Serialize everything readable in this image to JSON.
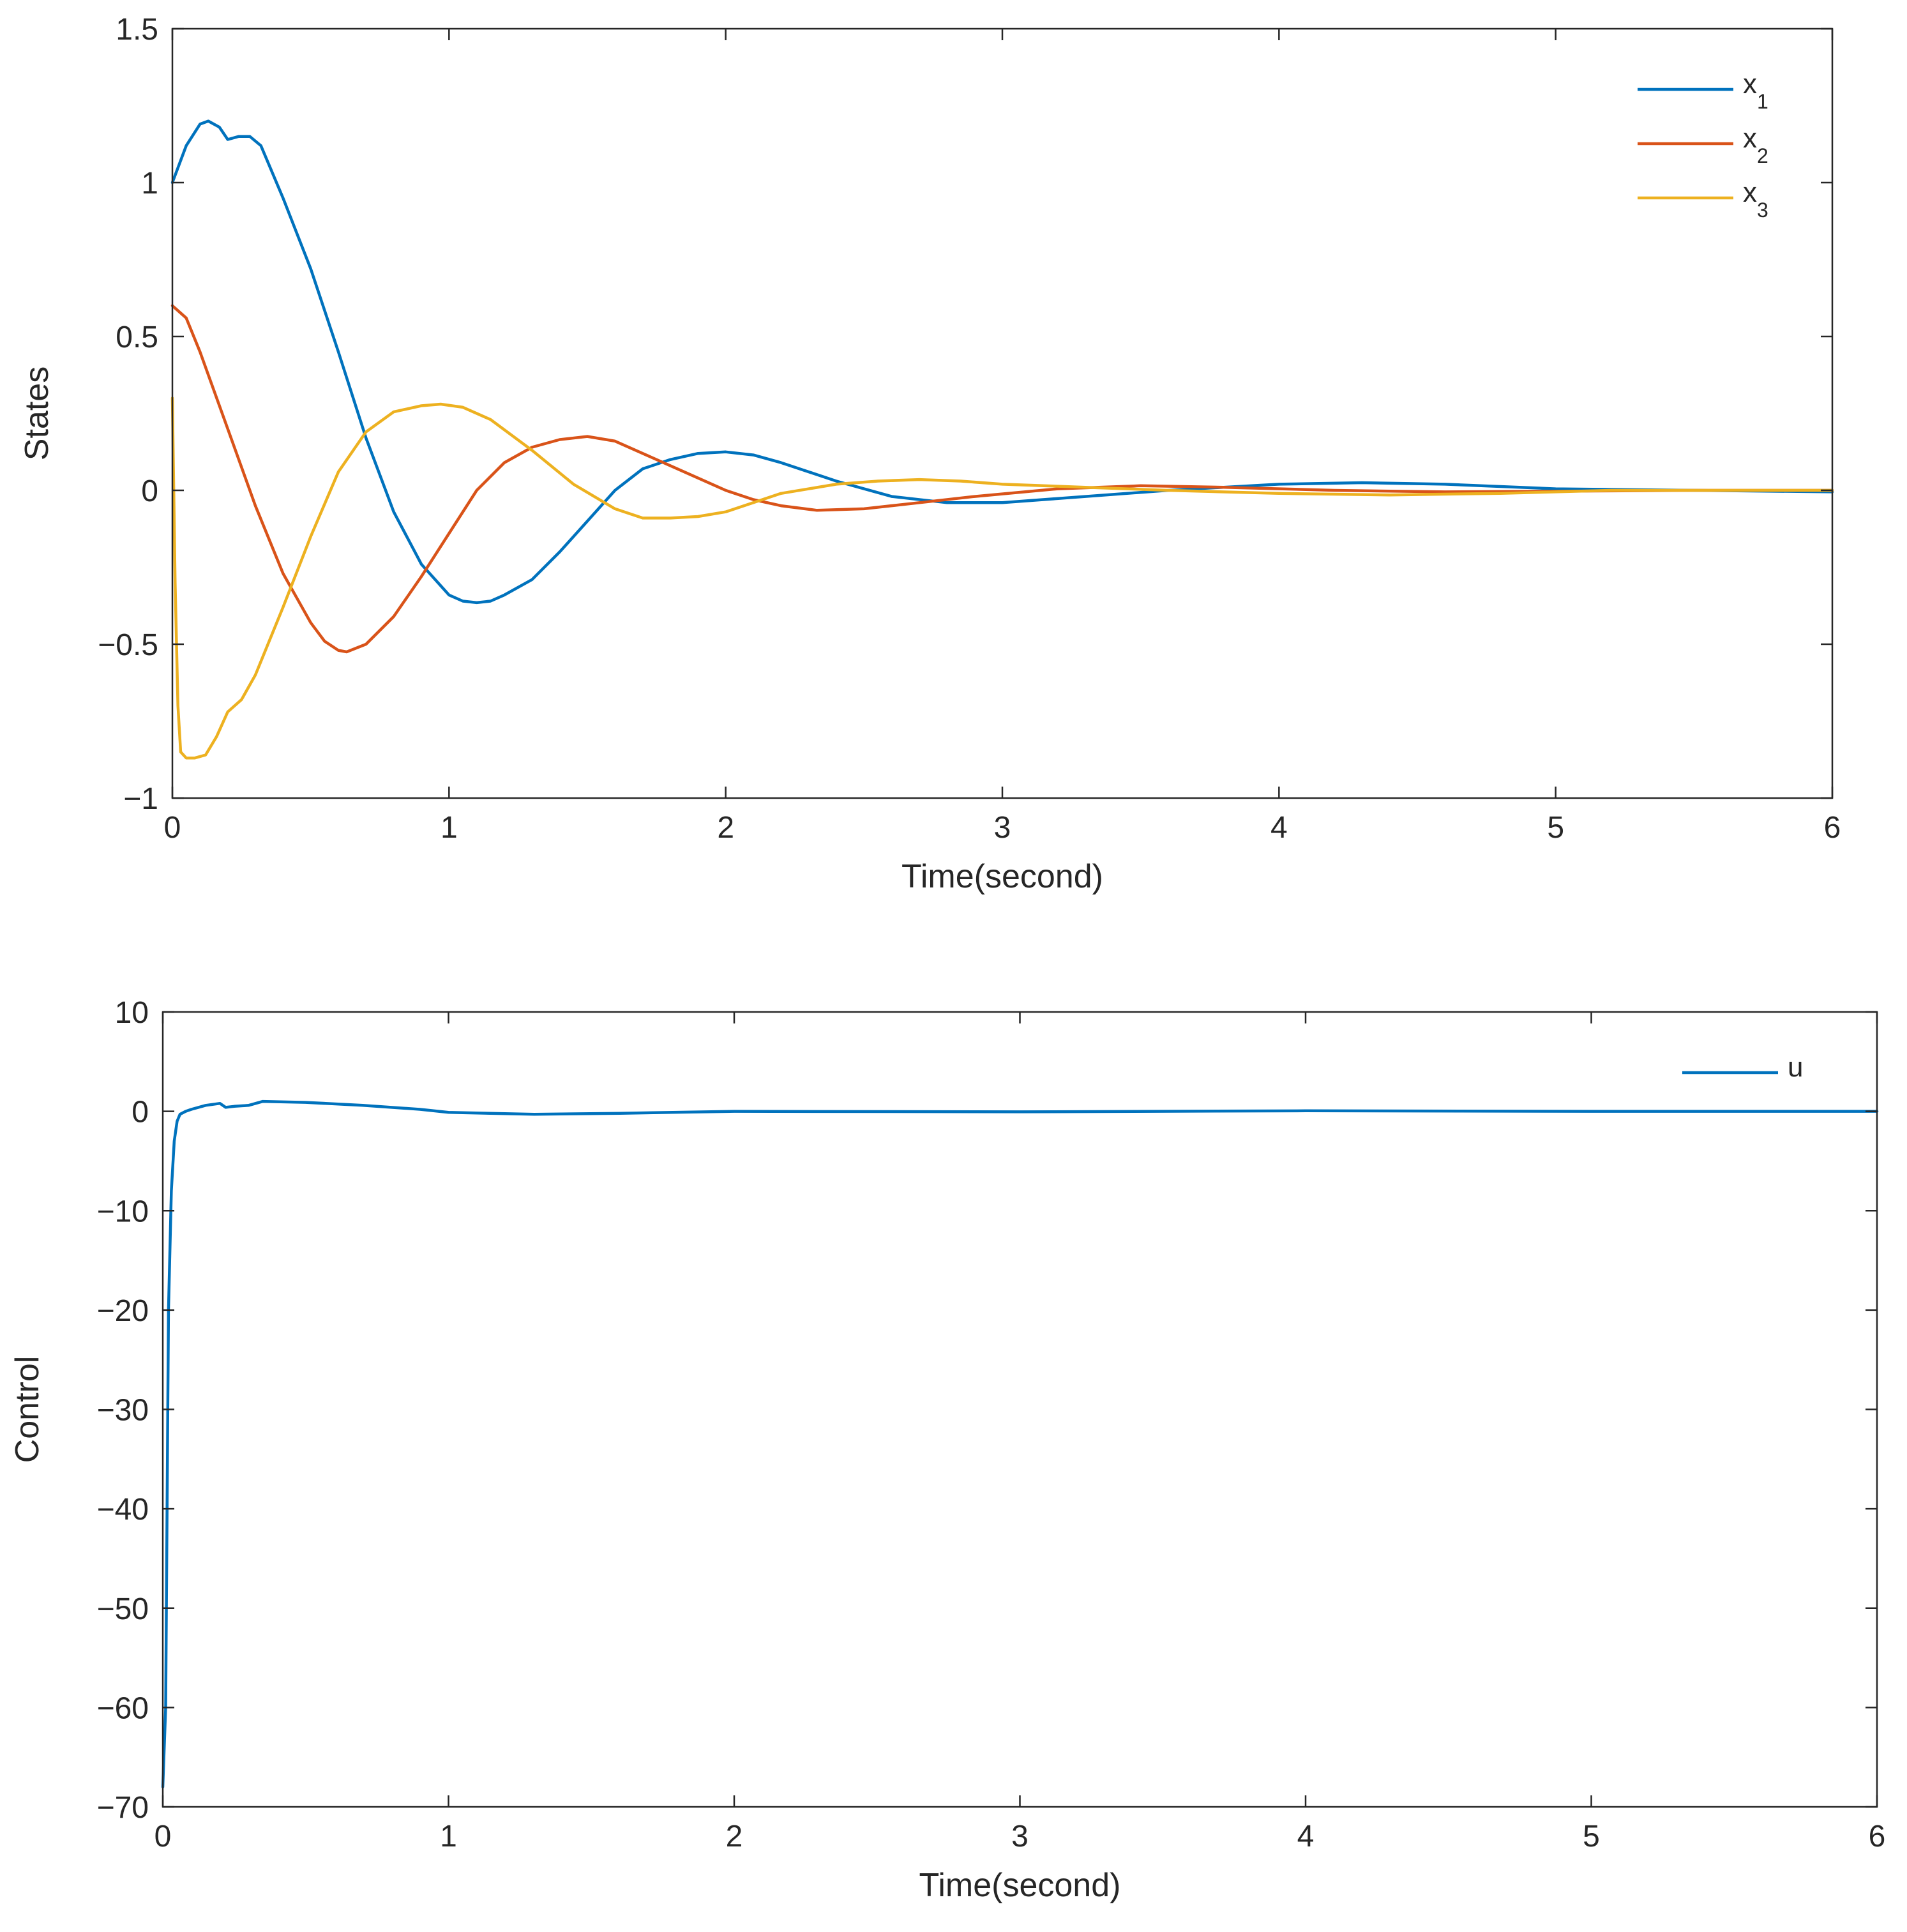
{
  "chart_data": [
    {
      "type": "line",
      "xlabel": "Time(second)",
      "ylabel": "States",
      "xlim": [
        0,
        6
      ],
      "ylim": [
        -1,
        1.5
      ],
      "xticks": [
        0,
        1,
        2,
        3,
        4,
        5,
        6
      ],
      "yticks": [
        -1,
        -0.5,
        0,
        0.5,
        1,
        1.5
      ],
      "xtick_labels": [
        "0",
        "1",
        "2",
        "3",
        "4",
        "5",
        "6"
      ],
      "ytick_labels": [
        "−1",
        "−0.5",
        "0",
        "0.5",
        "1",
        "1.5"
      ],
      "legend_position": "top-right",
      "series": [
        {
          "name": "x1",
          "label_main": "x",
          "label_sub": "1",
          "color": "#0072BD",
          "x": [
            0,
            0.05,
            0.1,
            0.13,
            0.17,
            0.2,
            0.24,
            0.28,
            0.32,
            0.4,
            0.5,
            0.6,
            0.7,
            0.8,
            0.9,
            1.0,
            1.05,
            1.1,
            1.15,
            1.2,
            1.3,
            1.4,
            1.5,
            1.6,
            1.7,
            1.8,
            1.9,
            2.0,
            2.1,
            2.2,
            2.4,
            2.6,
            2.8,
            3.0,
            3.3,
            3.6,
            4.0,
            4.3,
            4.6,
            5.0,
            5.5,
            6.0
          ],
          "y": [
            1.0,
            1.12,
            1.19,
            1.2,
            1.18,
            1.14,
            1.15,
            1.15,
            1.12,
            0.95,
            0.72,
            0.45,
            0.17,
            -0.07,
            -0.24,
            -0.34,
            -0.36,
            -0.365,
            -0.36,
            -0.34,
            -0.29,
            -0.2,
            -0.1,
            0.0,
            0.07,
            0.1,
            0.12,
            0.125,
            0.115,
            0.09,
            0.03,
            -0.02,
            -0.04,
            -0.04,
            -0.02,
            0.0,
            0.02,
            0.025,
            0.02,
            0.005,
            0.0,
            -0.005
          ]
        },
        {
          "name": "x2",
          "label_main": "x",
          "label_sub": "2",
          "color": "#D95319",
          "x": [
            0,
            0.05,
            0.1,
            0.2,
            0.3,
            0.4,
            0.5,
            0.55,
            0.6,
            0.63,
            0.7,
            0.8,
            0.9,
            1.0,
            1.1,
            1.2,
            1.3,
            1.4,
            1.5,
            1.6,
            1.7,
            1.8,
            1.9,
            2.0,
            2.1,
            2.2,
            2.33,
            2.5,
            2.7,
            2.9,
            3.2,
            3.5,
            3.8,
            4.2,
            4.6,
            5.0,
            5.5,
            6.0
          ],
          "y": [
            0.6,
            0.56,
            0.45,
            0.2,
            -0.05,
            -0.27,
            -0.43,
            -0.49,
            -0.52,
            -0.525,
            -0.5,
            -0.41,
            -0.28,
            -0.14,
            0.0,
            0.09,
            0.14,
            0.165,
            0.175,
            0.16,
            0.12,
            0.08,
            0.04,
            0.0,
            -0.03,
            -0.05,
            -0.065,
            -0.06,
            -0.04,
            -0.02,
            0.005,
            0.015,
            0.01,
            0.0,
            -0.005,
            -0.003,
            0.0,
            0.0
          ],
          "_": null
        },
        {
          "name": "x3",
          "label_main": "x",
          "label_sub": "3",
          "color": "#EDB120",
          "x": [
            0,
            0.01,
            0.02,
            0.03,
            0.05,
            0.08,
            0.12,
            0.16,
            0.2,
            0.25,
            0.3,
            0.4,
            0.5,
            0.6,
            0.7,
            0.8,
            0.9,
            0.97,
            1.05,
            1.15,
            1.3,
            1.45,
            1.6,
            1.7,
            1.8,
            1.9,
            2.0,
            2.1,
            2.2,
            2.4,
            2.55,
            2.7,
            2.85,
            3.0,
            3.3,
            3.6,
            4.0,
            4.4,
            4.8,
            5.2,
            6.0
          ],
          "y": [
            0.3,
            -0.3,
            -0.7,
            -0.85,
            -0.87,
            -0.87,
            -0.86,
            -0.8,
            -0.72,
            -0.68,
            -0.6,
            -0.38,
            -0.15,
            0.06,
            0.19,
            0.255,
            0.275,
            0.28,
            0.27,
            0.23,
            0.13,
            0.02,
            -0.06,
            -0.09,
            -0.09,
            -0.085,
            -0.07,
            -0.04,
            -0.01,
            0.02,
            0.03,
            0.035,
            0.03,
            0.02,
            0.01,
            0.0,
            -0.01,
            -0.015,
            -0.01,
            0.0,
            0.0
          ]
        }
      ]
    },
    {
      "type": "line",
      "xlabel": "Time(second)",
      "ylabel": "Control",
      "xlim": [
        0,
        6
      ],
      "ylim": [
        -70,
        10
      ],
      "xticks": [
        0,
        1,
        2,
        3,
        4,
        5,
        6
      ],
      "yticks": [
        -70,
        -60,
        -50,
        -40,
        -30,
        -20,
        -10,
        0,
        10
      ],
      "xtick_labels": [
        "0",
        "1",
        "2",
        "3",
        "4",
        "5",
        "6"
      ],
      "ytick_labels": [
        "−70",
        "−60",
        "−50",
        "−40",
        "−30",
        "−20",
        "−10",
        "0",
        "10"
      ],
      "legend_position": "top-right",
      "series": [
        {
          "name": "u",
          "label_main": "u",
          "label_sub": "",
          "color": "#0072BD",
          "x": [
            0,
            0.01,
            0.015,
            0.02,
            0.03,
            0.04,
            0.05,
            0.06,
            0.08,
            0.1,
            0.15,
            0.2,
            0.22,
            0.25,
            0.3,
            0.35,
            0.5,
            0.7,
            0.9,
            1.0,
            1.3,
            1.6,
            2.0,
            3.0,
            4.0,
            5.0,
            6.0
          ],
          "y": [
            -68,
            -60,
            -40,
            -20,
            -8,
            -3,
            -1,
            -0.3,
            0.0,
            0.2,
            0.6,
            0.8,
            0.4,
            0.5,
            0.6,
            1.0,
            0.9,
            0.6,
            0.2,
            -0.1,
            -0.3,
            -0.2,
            0.0,
            -0.05,
            0.05,
            0.0,
            0.0
          ]
        }
      ]
    }
  ]
}
